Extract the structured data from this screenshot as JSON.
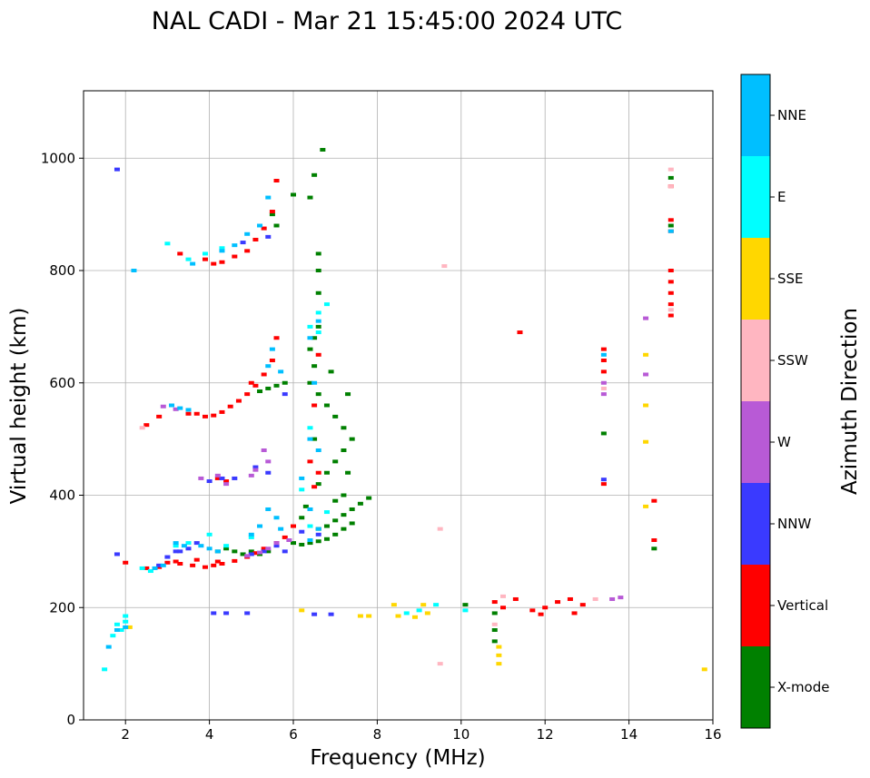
{
  "chart_data": {
    "type": "scatter",
    "title": "NAL CADI - Mar 21 15:45:00 2024 UTC",
    "xlabel": "Frequency (MHz)",
    "ylabel": "Virtual height (km)",
    "xlim": [
      1,
      16
    ],
    "ylim": [
      0,
      1120
    ],
    "xticks": [
      2,
      4,
      6,
      8,
      10,
      12,
      14,
      16
    ],
    "yticks": [
      0,
      200,
      400,
      600,
      800,
      1000
    ],
    "grid": true,
    "colorbar": {
      "title": "Azimuth Direction",
      "categories": [
        {
          "name": "X-mode",
          "color": "#008000"
        },
        {
          "name": "Vertical",
          "color": "#ff0000"
        },
        {
          "name": "NNW",
          "color": "#3a3aff"
        },
        {
          "name": "W",
          "color": "#b85ad6"
        },
        {
          "name": "SSW",
          "color": "#ffb6c1"
        },
        {
          "name": "SSE",
          "color": "#ffd700"
        },
        {
          "name": "E",
          "color": "#00ffff"
        },
        {
          "name": "NNE",
          "color": "#00bfff"
        }
      ]
    },
    "series": [
      {
        "name": "X-mode",
        "points": [
          [
            5.6,
            880
          ],
          [
            5.5,
            900
          ],
          [
            6.0,
            935
          ],
          [
            6.5,
            970
          ],
          [
            6.7,
            1015
          ],
          [
            6.4,
            930
          ],
          [
            5.8,
            600
          ],
          [
            5.6,
            595
          ],
          [
            5.4,
            590
          ],
          [
            5.2,
            585
          ],
          [
            6.0,
            315
          ],
          [
            6.2,
            312
          ],
          [
            6.4,
            315
          ],
          [
            6.6,
            318
          ],
          [
            6.8,
            322
          ],
          [
            7.0,
            330
          ],
          [
            7.2,
            340
          ],
          [
            7.4,
            350
          ],
          [
            6.6,
            340
          ],
          [
            6.8,
            345
          ],
          [
            7.0,
            355
          ],
          [
            7.2,
            365
          ],
          [
            7.4,
            375
          ],
          [
            7.6,
            385
          ],
          [
            7.8,
            395
          ],
          [
            7.0,
            390
          ],
          [
            7.2,
            400
          ],
          [
            6.6,
            420
          ],
          [
            6.8,
            440
          ],
          [
            7.0,
            460
          ],
          [
            7.2,
            480
          ],
          [
            7.4,
            500
          ],
          [
            7.2,
            520
          ],
          [
            7.0,
            540
          ],
          [
            6.8,
            560
          ],
          [
            6.6,
            580
          ],
          [
            6.4,
            600
          ],
          [
            6.5,
            630
          ],
          [
            6.4,
            660
          ],
          [
            6.5,
            680
          ],
          [
            6.6,
            700
          ],
          [
            6.6,
            760
          ],
          [
            6.6,
            800
          ],
          [
            6.6,
            830
          ],
          [
            5.4,
            300
          ],
          [
            5.2,
            295
          ],
          [
            5.0,
            300
          ],
          [
            4.8,
            295
          ],
          [
            4.6,
            300
          ],
          [
            4.4,
            305
          ],
          [
            4.2,
            300
          ],
          [
            13.4,
            510
          ],
          [
            14.6,
            305
          ],
          [
            15.0,
            880
          ],
          [
            15.0,
            965
          ],
          [
            10.8,
            190
          ],
          [
            10.8,
            160
          ],
          [
            10.8,
            140
          ],
          [
            10.1,
            205
          ],
          [
            6.9,
            620
          ],
          [
            7.3,
            580
          ],
          [
            7.3,
            440
          ],
          [
            6.3,
            380
          ],
          [
            6.2,
            360
          ],
          [
            6.5,
            500
          ]
        ]
      },
      {
        "name": "Vertical",
        "points": [
          [
            3.9,
            820
          ],
          [
            4.1,
            812
          ],
          [
            4.3,
            815
          ],
          [
            4.6,
            825
          ],
          [
            4.9,
            835
          ],
          [
            5.1,
            855
          ],
          [
            5.3,
            875
          ],
          [
            5.5,
            905
          ],
          [
            5.6,
            960
          ],
          [
            3.3,
            830
          ],
          [
            3.7,
            545
          ],
          [
            3.9,
            540
          ],
          [
            4.1,
            542
          ],
          [
            4.3,
            548
          ],
          [
            4.5,
            558
          ],
          [
            4.7,
            568
          ],
          [
            4.9,
            580
          ],
          [
            5.1,
            595
          ],
          [
            5.3,
            615
          ],
          [
            5.5,
            640
          ],
          [
            5.6,
            680
          ],
          [
            3.5,
            545
          ],
          [
            2.5,
            525
          ],
          [
            2.8,
            540
          ],
          [
            3.0,
            280
          ],
          [
            3.3,
            278
          ],
          [
            3.6,
            275
          ],
          [
            3.9,
            272
          ],
          [
            4.1,
            275
          ],
          [
            4.3,
            278
          ],
          [
            4.6,
            283
          ],
          [
            4.9,
            290
          ],
          [
            5.1,
            297
          ],
          [
            5.3,
            305
          ],
          [
            5.6,
            315
          ],
          [
            5.8,
            325
          ],
          [
            6.0,
            345
          ],
          [
            2.5,
            270
          ],
          [
            2.8,
            272
          ],
          [
            3.2,
            282
          ],
          [
            3.7,
            285
          ],
          [
            4.2,
            282
          ],
          [
            4.2,
            430
          ],
          [
            4.4,
            425
          ],
          [
            6.4,
            460
          ],
          [
            6.6,
            440
          ],
          [
            6.5,
            415
          ],
          [
            11.4,
            690
          ],
          [
            10.8,
            210
          ],
          [
            11.0,
            200
          ],
          [
            11.7,
            195
          ],
          [
            12.0,
            200
          ],
          [
            12.3,
            210
          ],
          [
            12.6,
            215
          ],
          [
            12.9,
            205
          ],
          [
            12.7,
            190
          ],
          [
            11.9,
            188
          ],
          [
            11.3,
            215
          ],
          [
            13.4,
            660
          ],
          [
            13.4,
            640
          ],
          [
            13.4,
            620
          ],
          [
            13.4,
            420
          ],
          [
            15.0,
            720
          ],
          [
            15.0,
            740
          ],
          [
            15.0,
            760
          ],
          [
            15.0,
            780
          ],
          [
            15.0,
            800
          ],
          [
            15.0,
            870
          ],
          [
            15.0,
            890
          ],
          [
            15.0,
            950
          ],
          [
            14.6,
            320
          ],
          [
            14.6,
            390
          ],
          [
            6.6,
            650
          ],
          [
            6.5,
            560
          ],
          [
            2.0,
            280
          ],
          [
            5.0,
            600
          ]
        ]
      },
      {
        "name": "NNW",
        "points": [
          [
            1.8,
            980
          ],
          [
            1.8,
            295
          ],
          [
            4.1,
            190
          ],
          [
            4.4,
            190
          ],
          [
            4.9,
            190
          ],
          [
            6.5,
            188
          ],
          [
            6.9,
            188
          ],
          [
            5.4,
            440
          ],
          [
            5.1,
            450
          ],
          [
            4.6,
            430
          ],
          [
            3.7,
            315
          ],
          [
            3.5,
            305
          ],
          [
            3.3,
            300
          ],
          [
            3.0,
            290
          ],
          [
            5.0,
            295
          ],
          [
            5.3,
            300
          ],
          [
            5.6,
            310
          ],
          [
            5.8,
            300
          ],
          [
            6.2,
            335
          ],
          [
            6.6,
            330
          ],
          [
            4.3,
            430
          ],
          [
            4.0,
            425
          ],
          [
            13.4,
            428
          ],
          [
            5.8,
            580
          ],
          [
            5.4,
            860
          ],
          [
            4.8,
            850
          ],
          [
            3.2,
            300
          ],
          [
            2.8,
            275
          ]
        ]
      },
      {
        "name": "W",
        "points": [
          [
            5.3,
            480
          ],
          [
            5.4,
            460
          ],
          [
            5.1,
            445
          ],
          [
            5.0,
            435
          ],
          [
            4.4,
            420
          ],
          [
            4.2,
            435
          ],
          [
            3.8,
            430
          ],
          [
            5.9,
            320
          ],
          [
            5.6,
            315
          ],
          [
            5.4,
            305
          ],
          [
            5.2,
            298
          ],
          [
            4.9,
            292
          ],
          [
            14.4,
            715
          ],
          [
            14.4,
            615
          ],
          [
            13.4,
            600
          ],
          [
            13.4,
            580
          ],
          [
            13.8,
            218
          ],
          [
            13.6,
            215
          ],
          [
            3.2,
            553
          ],
          [
            2.9,
            558
          ]
        ]
      },
      {
        "name": "SSW",
        "points": [
          [
            9.6,
            808
          ],
          [
            9.5,
            340
          ],
          [
            9.5,
            100
          ],
          [
            11.0,
            220
          ],
          [
            13.2,
            215
          ],
          [
            15.0,
            980
          ],
          [
            15.0,
            950
          ],
          [
            13.4,
            590
          ],
          [
            10.8,
            170
          ],
          [
            15.0,
            730
          ],
          [
            2.4,
            520
          ]
        ]
      },
      {
        "name": "SSE",
        "points": [
          [
            10.9,
            100
          ],
          [
            10.9,
            115
          ],
          [
            10.9,
            130
          ],
          [
            15.8,
            90
          ],
          [
            14.4,
            650
          ],
          [
            14.4,
            560
          ],
          [
            14.4,
            495
          ],
          [
            14.4,
            380
          ],
          [
            8.5,
            185
          ],
          [
            8.9,
            183
          ],
          [
            9.2,
            190
          ],
          [
            7.6,
            185
          ],
          [
            7.8,
            185
          ],
          [
            6.2,
            195
          ],
          [
            8.4,
            205
          ],
          [
            9.1,
            205
          ],
          [
            2.1,
            165
          ]
        ]
      },
      {
        "name": "E",
        "points": [
          [
            1.5,
            90
          ],
          [
            1.7,
            150
          ],
          [
            1.8,
            170
          ],
          [
            1.9,
            160
          ],
          [
            2.0,
            175
          ],
          [
            2.0,
            185
          ],
          [
            9.4,
            205
          ],
          [
            8.7,
            190
          ],
          [
            9.0,
            195
          ],
          [
            2.4,
            270
          ],
          [
            2.6,
            265
          ],
          [
            3.2,
            310
          ],
          [
            3.5,
            315
          ],
          [
            4.0,
            330
          ],
          [
            4.4,
            310
          ],
          [
            5.0,
            325
          ],
          [
            6.4,
            700
          ],
          [
            6.6,
            725
          ],
          [
            6.8,
            740
          ],
          [
            6.6,
            690
          ],
          [
            6.4,
            520
          ],
          [
            6.2,
            410
          ],
          [
            6.8,
            370
          ],
          [
            6.4,
            345
          ],
          [
            3.5,
            820
          ],
          [
            3.0,
            848
          ],
          [
            3.9,
            830
          ],
          [
            4.3,
            840
          ],
          [
            10.1,
            195
          ]
        ]
      },
      {
        "name": "NNE",
        "points": [
          [
            1.6,
            130
          ],
          [
            1.8,
            160
          ],
          [
            2.0,
            165
          ],
          [
            2.2,
            800
          ],
          [
            3.6,
            812
          ],
          [
            4.3,
            835
          ],
          [
            4.6,
            845
          ],
          [
            4.9,
            865
          ],
          [
            5.2,
            880
          ],
          [
            5.4,
            930
          ],
          [
            3.1,
            560
          ],
          [
            3.3,
            555
          ],
          [
            3.5,
            552
          ],
          [
            5.5,
            660
          ],
          [
            5.4,
            630
          ],
          [
            5.7,
            620
          ],
          [
            6.4,
            680
          ],
          [
            6.6,
            710
          ],
          [
            6.5,
            600
          ],
          [
            6.4,
            500
          ],
          [
            6.6,
            480
          ],
          [
            6.2,
            430
          ],
          [
            6.4,
            375
          ],
          [
            6.6,
            340
          ],
          [
            6.4,
            320
          ],
          [
            5.7,
            340
          ],
          [
            5.6,
            360
          ],
          [
            5.4,
            375
          ],
          [
            5.2,
            345
          ],
          [
            5.0,
            330
          ],
          [
            3.2,
            315
          ],
          [
            3.4,
            310
          ],
          [
            3.8,
            310
          ],
          [
            4.0,
            305
          ],
          [
            4.2,
            300
          ],
          [
            2.7,
            270
          ],
          [
            2.9,
            275
          ],
          [
            15.0,
            870
          ],
          [
            13.4,
            650
          ]
        ]
      }
    ]
  }
}
